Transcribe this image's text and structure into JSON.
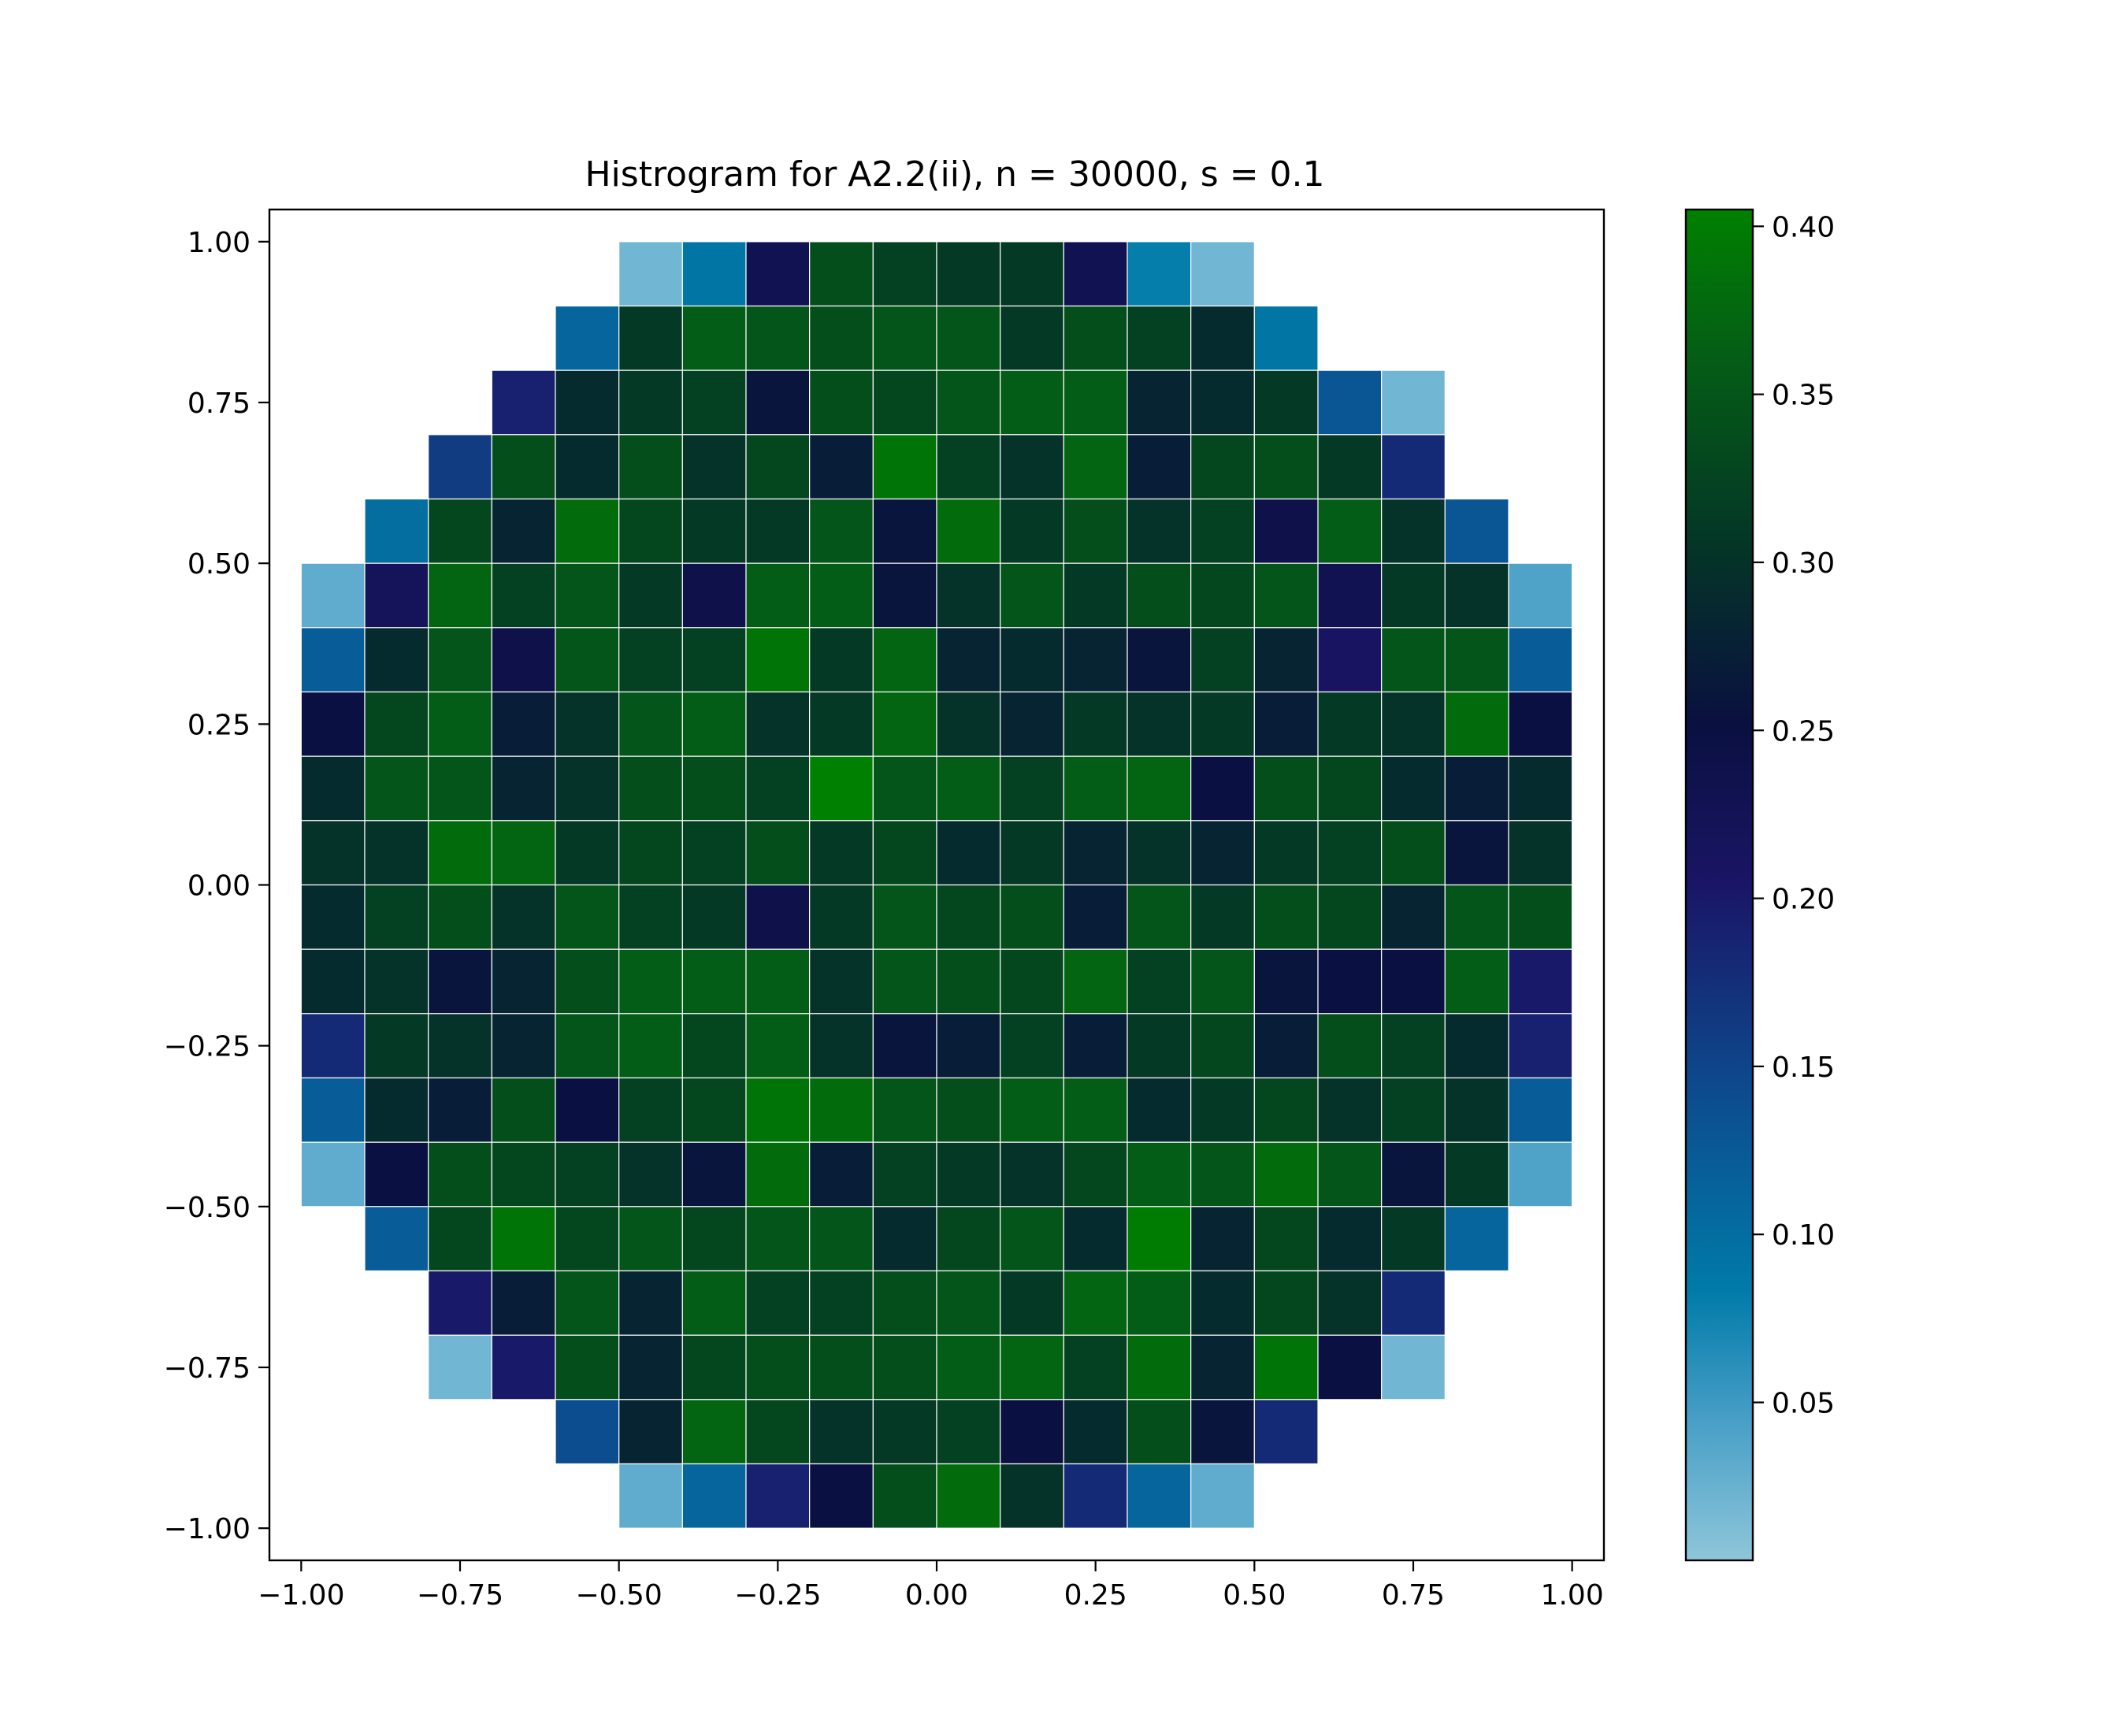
{
  "chart_data": {
    "type": "heatmap",
    "title": "Histrogram for A2.2(ii),  n = 30000, s = 0.1",
    "xlabel": "",
    "ylabel": "",
    "xlim": [
      -1.05,
      1.05
    ],
    "ylim": [
      -1.05,
      1.05
    ],
    "bins": 20,
    "bin_width": 0.1,
    "x_ticks": [
      -1.0,
      -0.75,
      -0.5,
      -0.25,
      0.0,
      0.25,
      0.5,
      0.75,
      1.0
    ],
    "x_tick_labels": [
      "−1.00",
      "−0.75",
      "−0.50",
      "−0.25",
      "0.00",
      "0.25",
      "0.50",
      "0.75",
      "1.00"
    ],
    "y_ticks": [
      1.0,
      0.75,
      0.5,
      0.25,
      0.0,
      -0.25,
      -0.5,
      -0.75,
      -1.0
    ],
    "y_tick_labels": [
      "1.00",
      "0.75",
      "0.50",
      "0.25",
      "0.00",
      "−0.25",
      "−0.50",
      "−0.75",
      "−1.00"
    ],
    "colorbar": {
      "range": [
        0.003,
        0.405
      ],
      "ticks": [
        0.05,
        0.1,
        0.15,
        0.2,
        0.25,
        0.3,
        0.35,
        0.4
      ],
      "tick_labels": [
        "0.05",
        "0.10",
        "0.15",
        "0.20",
        "0.25",
        "0.30",
        "0.35",
        "0.40"
      ]
    },
    "colormap": {
      "stops": [
        0.0,
        0.1,
        0.2,
        0.35,
        0.5,
        0.62,
        0.75,
        0.9,
        1.0
      ],
      "colors": [
        "#8ec6d9",
        "#4aa0c8",
        "#007ba8",
        "#0d4a8d",
        "#1a1566",
        "#0a1040",
        "#043527",
        "#046014",
        "#008000"
      ]
    },
    "grid": false,
    "row_extent_x": [
      -1.0,
      1.0
    ],
    "rows_note_y_top_to_bottom": [
      0.95,
      0.85,
      0.75,
      0.65,
      0.55,
      0.45,
      0.35,
      0.25,
      0.15,
      0.05,
      -0.05,
      -0.15,
      -0.25,
      -0.35,
      -0.45,
      -0.55,
      -0.65,
      -0.75,
      -0.85,
      -0.95
    ],
    "row_start_col": [
      5,
      4,
      3,
      2,
      1,
      0,
      0,
      0,
      0,
      0,
      0,
      0,
      0,
      0,
      0,
      1,
      2,
      2,
      4,
      5
    ],
    "values": [
      [
        0.02,
        0.09,
        0.23,
        0.34,
        0.32,
        0.31,
        0.31,
        0.23,
        0.08,
        0.02
      ],
      [
        0.11,
        0.31,
        0.36,
        0.35,
        0.34,
        0.35,
        0.35,
        0.31,
        0.34,
        0.32,
        0.29,
        0.09
      ],
      [
        0.19,
        0.29,
        0.31,
        0.32,
        0.26,
        0.34,
        0.33,
        0.35,
        0.36,
        0.36,
        0.28,
        0.29,
        0.31,
        0.13,
        0.02
      ],
      [
        0.16,
        0.34,
        0.29,
        0.34,
        0.3,
        0.33,
        0.27,
        0.39,
        0.32,
        0.3,
        0.37,
        0.27,
        0.33,
        0.34,
        0.31,
        0.18
      ],
      [
        0.1,
        0.33,
        0.28,
        0.38,
        0.33,
        0.31,
        0.31,
        0.35,
        0.26,
        0.38,
        0.31,
        0.34,
        0.3,
        0.32,
        0.24,
        0.36,
        0.3,
        0.13
      ],
      [
        0.03,
        0.22,
        0.37,
        0.32,
        0.35,
        0.31,
        0.24,
        0.36,
        0.36,
        0.26,
        0.3,
        0.35,
        0.31,
        0.34,
        0.33,
        0.35,
        0.23,
        0.31,
        0.3,
        0.04
      ],
      [
        0.12,
        0.29,
        0.35,
        0.24,
        0.35,
        0.32,
        0.32,
        0.39,
        0.31,
        0.37,
        0.28,
        0.29,
        0.28,
        0.26,
        0.32,
        0.28,
        0.21,
        0.35,
        0.35,
        0.12
      ],
      [
        0.25,
        0.33,
        0.36,
        0.27,
        0.3,
        0.35,
        0.36,
        0.3,
        0.31,
        0.37,
        0.3,
        0.28,
        0.31,
        0.3,
        0.31,
        0.27,
        0.31,
        0.3,
        0.38,
        0.25
      ],
      [
        0.29,
        0.35,
        0.35,
        0.28,
        0.3,
        0.34,
        0.34,
        0.32,
        0.41,
        0.35,
        0.36,
        0.32,
        0.36,
        0.37,
        0.25,
        0.34,
        0.33,
        0.29,
        0.27,
        0.29
      ],
      [
        0.3,
        0.3,
        0.38,
        0.37,
        0.31,
        0.33,
        0.32,
        0.34,
        0.31,
        0.33,
        0.29,
        0.31,
        0.28,
        0.3,
        0.28,
        0.31,
        0.32,
        0.34,
        0.26,
        0.3
      ],
      [
        0.29,
        0.32,
        0.34,
        0.3,
        0.35,
        0.32,
        0.31,
        0.24,
        0.31,
        0.35,
        0.33,
        0.34,
        0.27,
        0.35,
        0.31,
        0.34,
        0.33,
        0.28,
        0.35,
        0.34
      ],
      [
        0.29,
        0.3,
        0.26,
        0.28,
        0.34,
        0.36,
        0.36,
        0.36,
        0.3,
        0.35,
        0.34,
        0.33,
        0.37,
        0.32,
        0.35,
        0.26,
        0.25,
        0.25,
        0.36,
        0.2
      ],
      [
        0.18,
        0.31,
        0.3,
        0.28,
        0.35,
        0.36,
        0.33,
        0.36,
        0.3,
        0.26,
        0.27,
        0.32,
        0.27,
        0.31,
        0.33,
        0.27,
        0.34,
        0.32,
        0.29,
        0.19
      ],
      [
        0.12,
        0.29,
        0.27,
        0.34,
        0.25,
        0.32,
        0.33,
        0.39,
        0.38,
        0.35,
        0.34,
        0.36,
        0.36,
        0.29,
        0.31,
        0.33,
        0.3,
        0.32,
        0.3,
        0.12
      ],
      [
        0.03,
        0.25,
        0.34,
        0.33,
        0.32,
        0.3,
        0.26,
        0.38,
        0.27,
        0.32,
        0.31,
        0.3,
        0.33,
        0.36,
        0.35,
        0.38,
        0.35,
        0.26,
        0.31,
        0.04
      ],
      [
        0.12,
        0.33,
        0.39,
        0.33,
        0.35,
        0.33,
        0.35,
        0.35,
        0.29,
        0.33,
        0.35,
        0.29,
        0.4,
        0.28,
        0.33,
        0.29,
        0.31,
        0.11
      ],
      [
        0.2,
        0.27,
        0.35,
        0.28,
        0.36,
        0.32,
        0.32,
        0.34,
        0.35,
        0.31,
        0.37,
        0.36,
        0.29,
        0.33,
        0.3,
        0.18
      ],
      [
        0.02,
        0.2,
        0.34,
        0.28,
        0.33,
        0.34,
        0.34,
        0.34,
        0.36,
        0.37,
        0.32,
        0.38,
        0.28,
        0.39,
        0.25,
        0.02
      ],
      [
        0.14,
        0.28,
        0.37,
        0.33,
        0.3,
        0.31,
        0.32,
        0.25,
        0.29,
        0.34,
        0.26,
        0.18
      ],
      [
        0.03,
        0.11,
        0.19,
        0.25,
        0.34,
        0.38,
        0.3,
        0.18,
        0.11,
        0.03
      ]
    ]
  }
}
